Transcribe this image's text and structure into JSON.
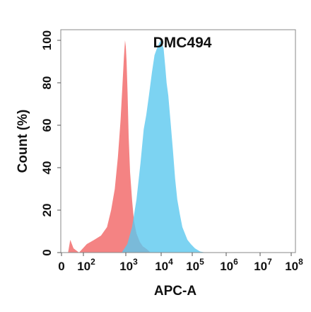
{
  "chart_data": {
    "type": "area",
    "title": "DMC494",
    "xlabel": "APC-A",
    "ylabel": "Count  (%)",
    "xscale": "biexponential-log",
    "ylim": [
      0,
      105
    ],
    "grid": false,
    "x_ticks": [
      {
        "value": 0,
        "base": "0",
        "exp": ""
      },
      {
        "value": 100,
        "base": "10",
        "exp": "2"
      },
      {
        "value": 1000,
        "base": "10",
        "exp": "3"
      },
      {
        "value": 10000,
        "base": "10",
        "exp": "4"
      },
      {
        "value": 100000,
        "base": "10",
        "exp": "5"
      },
      {
        "value": 1000000,
        "base": "10",
        "exp": "6"
      },
      {
        "value": 10000000,
        "base": "10",
        "exp": "7"
      },
      {
        "value": 100000000,
        "base": "10",
        "exp": "8"
      }
    ],
    "y_ticks": [
      0,
      20,
      40,
      60,
      80,
      100
    ],
    "series": [
      {
        "color": "#f26d6d",
        "opacity": 0.85,
        "points": [
          [
            30,
            0
          ],
          [
            40,
            6
          ],
          [
            55,
            2
          ],
          [
            80,
            0
          ],
          [
            120,
            4
          ],
          [
            180,
            6
          ],
          [
            260,
            8
          ],
          [
            360,
            12
          ],
          [
            450,
            20
          ],
          [
            550,
            30
          ],
          [
            650,
            45
          ],
          [
            750,
            62
          ],
          [
            830,
            78
          ],
          [
            900,
            92
          ],
          [
            960,
            100
          ],
          [
            1000,
            97
          ],
          [
            1050,
            90
          ],
          [
            1120,
            75
          ],
          [
            1200,
            55
          ],
          [
            1320,
            38
          ],
          [
            1500,
            25
          ],
          [
            1700,
            15
          ],
          [
            2000,
            9
          ],
          [
            2500,
            5
          ],
          [
            3000,
            3
          ],
          [
            4000,
            1.5
          ],
          [
            5000,
            0
          ]
        ]
      },
      {
        "color": "#5bc8ef",
        "opacity": 0.8,
        "points": [
          [
            800,
            0
          ],
          [
            1100,
            4
          ],
          [
            1500,
            12
          ],
          [
            2000,
            25
          ],
          [
            2600,
            42
          ],
          [
            3200,
            58
          ],
          [
            3800,
            65
          ],
          [
            4500,
            74
          ],
          [
            5500,
            85
          ],
          [
            6500,
            93
          ],
          [
            7500,
            96
          ],
          [
            9000,
            99
          ],
          [
            10000,
            100
          ],
          [
            11000,
            98
          ],
          [
            12000,
            96
          ],
          [
            13500,
            88
          ],
          [
            15000,
            80
          ],
          [
            17000,
            74
          ],
          [
            20000,
            62
          ],
          [
            24000,
            48
          ],
          [
            28000,
            35
          ],
          [
            33000,
            25
          ],
          [
            40000,
            18
          ],
          [
            48000,
            12
          ],
          [
            58000,
            9
          ],
          [
            70000,
            6
          ],
          [
            90000,
            4
          ],
          [
            120000,
            2
          ],
          [
            170000,
            0.5
          ],
          [
            250000,
            0
          ]
        ]
      }
    ]
  }
}
